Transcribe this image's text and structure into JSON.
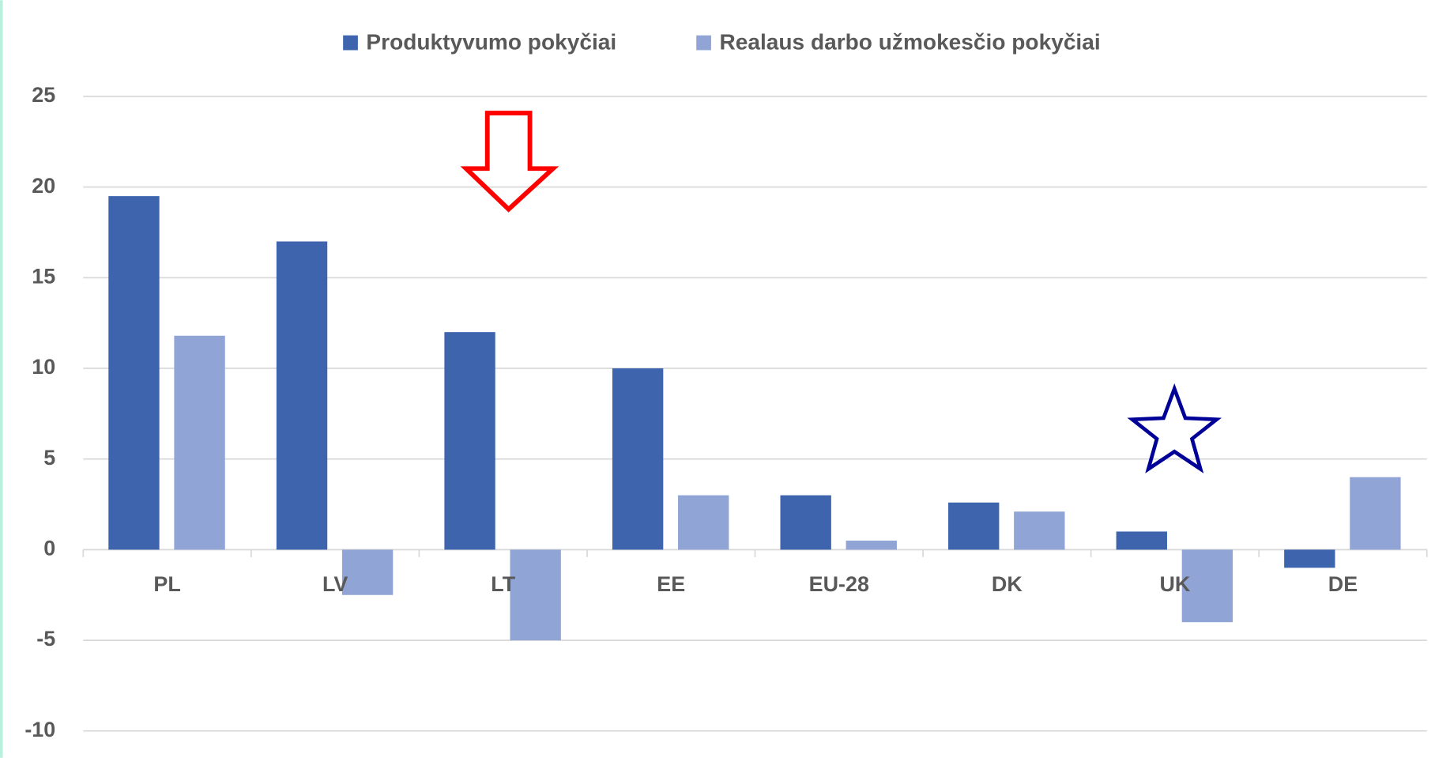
{
  "chart_data": {
    "type": "bar",
    "categories": [
      "PL",
      "LV",
      "LT",
      "EE",
      "EU-28",
      "DK",
      "UK",
      "DE"
    ],
    "series": [
      {
        "name": "Produktyvumo pokyčiai",
        "color": "#3d64ad",
        "values": [
          19.5,
          17,
          12,
          10,
          3,
          2.6,
          1,
          -1
        ]
      },
      {
        "name": "Realaus darbo užmokesčio pokyčiai",
        "color": "#90a5d5",
        "values": [
          11.8,
          -2.5,
          -5,
          3,
          0.5,
          2.1,
          -4,
          4
        ]
      }
    ],
    "ylim": [
      -10,
      25
    ],
    "yticks": [
      -10,
      -5,
      0,
      5,
      10,
      15,
      20,
      25
    ],
    "grid": true,
    "legend": "top"
  }
}
